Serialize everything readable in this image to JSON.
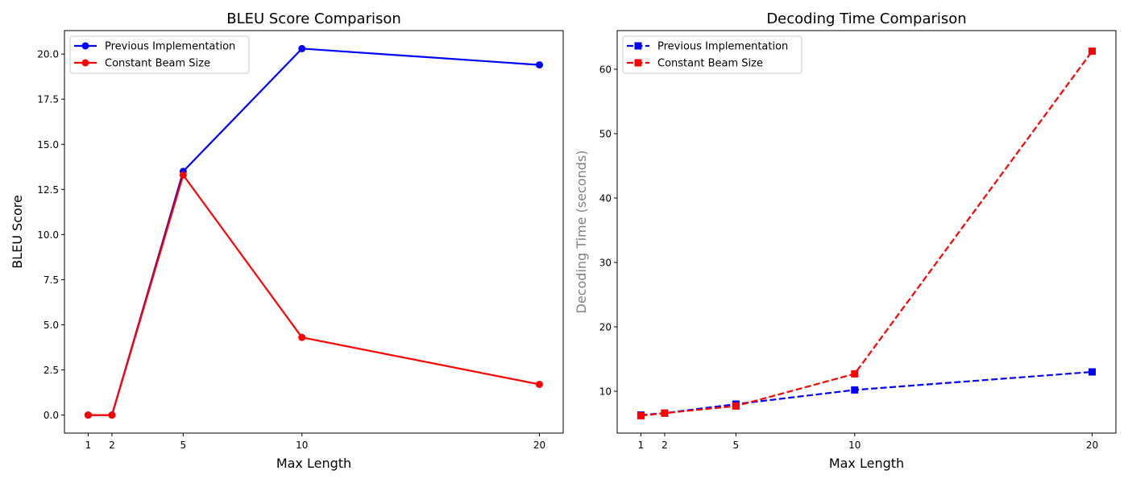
{
  "chart_data": [
    {
      "type": "line",
      "title": "BLEU Score Comparison",
      "xlabel": "Max Length",
      "ylabel": "BLEU Score",
      "x": [
        1,
        2,
        5,
        10,
        20
      ],
      "xticks": [
        "1",
        "2",
        "5",
        "10",
        "20"
      ],
      "xlim": [
        0,
        21
      ],
      "ylim": [
        -1,
        21.3
      ],
      "yticks": [
        "0.0",
        "2.5",
        "5.0",
        "7.5",
        "10.0",
        "12.5",
        "15.0",
        "17.5",
        "20.0"
      ],
      "ytick_values": [
        0,
        2.5,
        5,
        7.5,
        10,
        12.5,
        15,
        17.5,
        20
      ],
      "grid": false,
      "legend_position": "top-left",
      "series": [
        {
          "name": "Previous Implementation",
          "values": [
            0,
            0,
            13.5,
            20.3,
            19.4
          ],
          "color": "#0000ff",
          "marker": "circle",
          "dash": "solid"
        },
        {
          "name": "Constant Beam Size",
          "values": [
            0,
            0,
            13.3,
            4.3,
            1.7
          ],
          "color": "#ff0000",
          "marker": "circle",
          "dash": "solid"
        }
      ]
    },
    {
      "type": "line",
      "title": "Decoding Time Comparison",
      "xlabel": "Max Length",
      "ylabel": "Decoding Time (seconds)",
      "ylabel_color": "#808080",
      "x": [
        1,
        2,
        5,
        10,
        20
      ],
      "xticks": [
        "1",
        "2",
        "5",
        "10",
        "20"
      ],
      "xlim": [
        0,
        21
      ],
      "ylim": [
        3.5,
        66
      ],
      "yticks": [
        "10",
        "20",
        "30",
        "40",
        "50",
        "60"
      ],
      "ytick_values": [
        10,
        20,
        30,
        40,
        50,
        60
      ],
      "grid": false,
      "legend_position": "top-left",
      "series": [
        {
          "name": "Previous Implementation",
          "values": [
            6.3,
            6.6,
            8.0,
            10.2,
            13.0
          ],
          "color": "#0000ff",
          "marker": "square",
          "dash": "dashed"
        },
        {
          "name": "Constant Beam Size",
          "values": [
            6.2,
            6.6,
            7.7,
            12.7,
            62.8
          ],
          "color": "#ff0000",
          "marker": "square",
          "dash": "dashed"
        }
      ]
    }
  ]
}
